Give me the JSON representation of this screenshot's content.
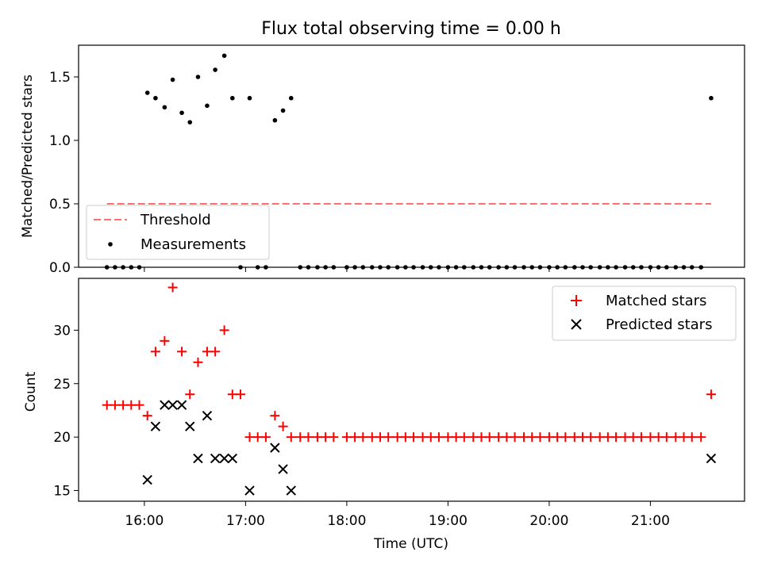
{
  "title": "Flux total observing time = 0.00 h",
  "xlabel": "Time (UTC)",
  "x_ticks": [
    "16:00",
    "17:00",
    "18:00",
    "19:00",
    "20:00",
    "21:00"
  ],
  "x_tick_hours": [
    16,
    17,
    18,
    19,
    20,
    21
  ],
  "colors": {
    "matched": "#ff0000",
    "predicted": "#000000",
    "threshold": "#ff6f6f",
    "measurement": "#000000"
  },
  "chart_data": [
    {
      "type": "scatter",
      "panel": "top",
      "ylabel": "Matched/Predicted stars",
      "xlim_hours": [
        15.35,
        21.93
      ],
      "ylim": [
        0,
        1.75
      ],
      "y_ticks": [
        0.0,
        0.5,
        1.0,
        1.5
      ],
      "y_tick_labels": [
        "0.0",
        "0.5",
        "1.0",
        "1.5"
      ],
      "legend_position": "lower-left",
      "threshold": {
        "name": "Threshold",
        "value": 0.5,
        "x_range_hours": [
          15.63,
          21.6
        ]
      },
      "series": [
        {
          "name": "Measurements",
          "points": [
            [
              15.63,
              0
            ],
            [
              15.71,
              0
            ],
            [
              15.79,
              0
            ],
            [
              15.87,
              0
            ],
            [
              15.95,
              0
            ],
            [
              16.03,
              1.375
            ],
            [
              16.11,
              1.333
            ],
            [
              16.2,
              1.261
            ],
            [
              16.28,
              1.478
            ],
            [
              16.37,
              1.217
            ],
            [
              16.45,
              1.143
            ],
            [
              16.53,
              1.5
            ],
            [
              16.62,
              1.273
            ],
            [
              16.7,
              1.556
            ],
            [
              16.79,
              1.667
            ],
            [
              16.87,
              1.333
            ],
            [
              16.95,
              0
            ],
            [
              17.04,
              1.333
            ],
            [
              17.12,
              0
            ],
            [
              17.2,
              0
            ],
            [
              17.29,
              1.158
            ],
            [
              17.37,
              1.235
            ],
            [
              17.45,
              1.333
            ],
            [
              17.54,
              0
            ],
            [
              17.62,
              0
            ],
            [
              17.71,
              0
            ],
            [
              17.79,
              0
            ],
            [
              17.87,
              0
            ],
            [
              18.0,
              0
            ],
            [
              18.08,
              0
            ],
            [
              18.16,
              0
            ],
            [
              18.25,
              0
            ],
            [
              18.33,
              0
            ],
            [
              18.41,
              0
            ],
            [
              18.5,
              0
            ],
            [
              18.58,
              0
            ],
            [
              18.66,
              0
            ],
            [
              18.75,
              0
            ],
            [
              18.83,
              0
            ],
            [
              18.91,
              0
            ],
            [
              19.0,
              0
            ],
            [
              19.08,
              0
            ],
            [
              19.16,
              0
            ],
            [
              19.25,
              0
            ],
            [
              19.33,
              0
            ],
            [
              19.41,
              0
            ],
            [
              19.5,
              0
            ],
            [
              19.58,
              0
            ],
            [
              19.66,
              0
            ],
            [
              19.75,
              0
            ],
            [
              19.83,
              0
            ],
            [
              19.91,
              0
            ],
            [
              20.0,
              0
            ],
            [
              20.08,
              0
            ],
            [
              20.16,
              0
            ],
            [
              20.25,
              0
            ],
            [
              20.33,
              0
            ],
            [
              20.41,
              0
            ],
            [
              20.5,
              0
            ],
            [
              20.58,
              0
            ],
            [
              20.66,
              0
            ],
            [
              20.75,
              0
            ],
            [
              20.83,
              0
            ],
            [
              20.91,
              0
            ],
            [
              21.0,
              0
            ],
            [
              21.08,
              0
            ],
            [
              21.16,
              0
            ],
            [
              21.25,
              0
            ],
            [
              21.33,
              0
            ],
            [
              21.41,
              0
            ],
            [
              21.5,
              0
            ],
            [
              21.6,
              1.333
            ]
          ]
        }
      ]
    },
    {
      "type": "scatter",
      "panel": "bottom",
      "ylabel": "Count",
      "xlim_hours": [
        15.35,
        21.93
      ],
      "ylim": [
        14.0,
        34.85
      ],
      "y_ticks": [
        15,
        20,
        25,
        30
      ],
      "y_tick_labels": [
        "15",
        "20",
        "25",
        "30"
      ],
      "legend_position": "upper-right",
      "series": [
        {
          "name": "Matched stars",
          "marker": "plus",
          "points": [
            [
              15.63,
              23
            ],
            [
              15.71,
              23
            ],
            [
              15.79,
              23
            ],
            [
              15.87,
              23
            ],
            [
              15.95,
              23
            ],
            [
              16.03,
              22
            ],
            [
              16.11,
              28
            ],
            [
              16.2,
              29
            ],
            [
              16.28,
              34
            ],
            [
              16.37,
              28
            ],
            [
              16.45,
              24
            ],
            [
              16.53,
              27
            ],
            [
              16.62,
              28
            ],
            [
              16.7,
              28
            ],
            [
              16.79,
              30
            ],
            [
              16.87,
              24
            ],
            [
              16.95,
              24
            ],
            [
              17.04,
              20
            ],
            [
              17.12,
              20
            ],
            [
              17.2,
              20
            ],
            [
              17.29,
              22
            ],
            [
              17.37,
              21
            ],
            [
              17.45,
              20
            ],
            [
              17.54,
              20
            ],
            [
              17.62,
              20
            ],
            [
              17.71,
              20
            ],
            [
              17.79,
              20
            ],
            [
              17.87,
              20
            ],
            [
              18.0,
              20
            ],
            [
              18.08,
              20
            ],
            [
              18.16,
              20
            ],
            [
              18.25,
              20
            ],
            [
              18.33,
              20
            ],
            [
              18.41,
              20
            ],
            [
              18.5,
              20
            ],
            [
              18.58,
              20
            ],
            [
              18.66,
              20
            ],
            [
              18.75,
              20
            ],
            [
              18.83,
              20
            ],
            [
              18.91,
              20
            ],
            [
              19.0,
              20
            ],
            [
              19.08,
              20
            ],
            [
              19.16,
              20
            ],
            [
              19.25,
              20
            ],
            [
              19.33,
              20
            ],
            [
              19.41,
              20
            ],
            [
              19.5,
              20
            ],
            [
              19.58,
              20
            ],
            [
              19.66,
              20
            ],
            [
              19.75,
              20
            ],
            [
              19.83,
              20
            ],
            [
              19.91,
              20
            ],
            [
              20.0,
              20
            ],
            [
              20.08,
              20
            ],
            [
              20.16,
              20
            ],
            [
              20.25,
              20
            ],
            [
              20.33,
              20
            ],
            [
              20.41,
              20
            ],
            [
              20.5,
              20
            ],
            [
              20.58,
              20
            ],
            [
              20.66,
              20
            ],
            [
              20.75,
              20
            ],
            [
              20.83,
              20
            ],
            [
              20.91,
              20
            ],
            [
              21.0,
              20
            ],
            [
              21.08,
              20
            ],
            [
              21.16,
              20
            ],
            [
              21.25,
              20
            ],
            [
              21.33,
              20
            ],
            [
              21.41,
              20
            ],
            [
              21.5,
              20
            ],
            [
              21.6,
              24
            ]
          ]
        },
        {
          "name": "Predicted stars",
          "marker": "x",
          "points": [
            [
              16.03,
              16
            ],
            [
              16.11,
              21
            ],
            [
              16.2,
              23
            ],
            [
              16.28,
              23
            ],
            [
              16.37,
              23
            ],
            [
              16.45,
              21
            ],
            [
              16.53,
              18
            ],
            [
              16.62,
              22
            ],
            [
              16.7,
              18
            ],
            [
              16.79,
              18
            ],
            [
              16.87,
              18
            ],
            [
              17.04,
              15
            ],
            [
              17.29,
              19
            ],
            [
              17.37,
              17
            ],
            [
              17.45,
              15
            ],
            [
              21.6,
              18
            ]
          ]
        }
      ]
    }
  ]
}
